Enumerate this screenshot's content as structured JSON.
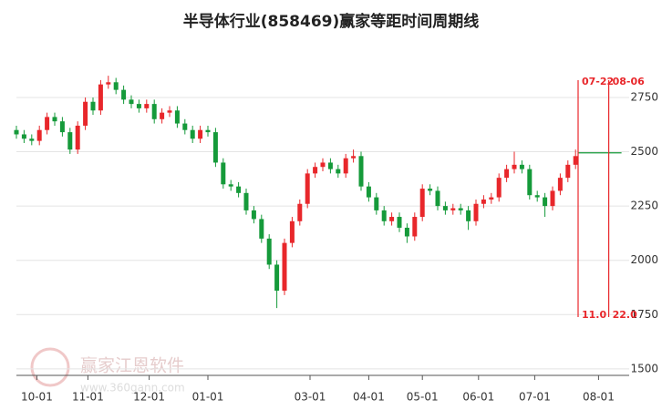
{
  "chart_data": {
    "type": "candlestick",
    "title": "半导体行业(858469)赢家等距时间周期线",
    "watermark": {
      "name": "赢家江恩软件",
      "url": "www.360gann.com"
    },
    "up_color": "#e8272b",
    "down_color": "#159a3a",
    "x": [
      0,
      3,
      6,
      9,
      12,
      15,
      18,
      21,
      24,
      27,
      30,
      33,
      36,
      39,
      42,
      45,
      48,
      51,
      54,
      57,
      60,
      63,
      66,
      69,
      72,
      75,
      78,
      81,
      84,
      87,
      90,
      93,
      96,
      99,
      102,
      105,
      108,
      111,
      114,
      117,
      120,
      123,
      126,
      129,
      132,
      135,
      138,
      141,
      144,
      147,
      150,
      153,
      156,
      159,
      162,
      165,
      168,
      171,
      174,
      177,
      180,
      183,
      186,
      189,
      192,
      195,
      198,
      201,
      204,
      207,
      210,
      213,
      216,
      219
    ],
    "open": [
      2600,
      2580,
      2560,
      2550,
      2600,
      2660,
      2640,
      2590,
      2510,
      2620,
      2730,
      2690,
      2810,
      2820,
      2785,
      2740,
      2720,
      2700,
      2720,
      2650,
      2680,
      2690,
      2630,
      2600,
      2560,
      2600,
      2590,
      2450,
      2350,
      2340,
      2310,
      2230,
      2190,
      2100,
      1980,
      1860,
      2080,
      2180,
      2260,
      2400,
      2430,
      2450,
      2420,
      2400,
      2470,
      2480,
      2340,
      2290,
      2230,
      2180,
      2200,
      2150,
      2110,
      2200,
      2330,
      2320,
      2250,
      2230,
      2240,
      2230,
      2180,
      2260,
      2280,
      2290,
      2380,
      2420,
      2440,
      2420,
      2300,
      2290,
      2250,
      2320,
      2380,
      2440
    ],
    "high": [
      2620,
      2600,
      2580,
      2620,
      2680,
      2680,
      2660,
      2610,
      2640,
      2750,
      2750,
      2830,
      2850,
      2840,
      2805,
      2760,
      2740,
      2740,
      2740,
      2700,
      2710,
      2710,
      2650,
      2620,
      2620,
      2620,
      2610,
      2470,
      2370,
      2360,
      2330,
      2250,
      2210,
      2120,
      2000,
      2100,
      2200,
      2280,
      2420,
      2450,
      2470,
      2470,
      2440,
      2490,
      2510,
      2500,
      2360,
      2310,
      2250,
      2220,
      2220,
      2170,
      2220,
      2350,
      2350,
      2340,
      2270,
      2260,
      2260,
      2250,
      2280,
      2300,
      2310,
      2400,
      2440,
      2500,
      2460,
      2440,
      2320,
      2310,
      2340,
      2400,
      2460,
      2510
    ],
    "low": [
      2560,
      2540,
      2530,
      2530,
      2580,
      2620,
      2570,
      2490,
      2490,
      2600,
      2670,
      2670,
      2790,
      2765,
      2720,
      2700,
      2680,
      2680,
      2630,
      2630,
      2660,
      2610,
      2580,
      2540,
      2540,
      2570,
      2430,
      2330,
      2320,
      2290,
      2210,
      2170,
      2080,
      1960,
      1780,
      1840,
      2060,
      2160,
      2240,
      2380,
      2410,
      2400,
      2380,
      2380,
      2450,
      2320,
      2270,
      2210,
      2160,
      2160,
      2130,
      2080,
      2090,
      2180,
      2300,
      2230,
      2210,
      2210,
      2210,
      2140,
      2160,
      2240,
      2260,
      2270,
      2360,
      2400,
      2400,
      2280,
      2270,
      2200,
      2230,
      2300,
      2360,
      2420
    ],
    "close": [
      2580,
      2560,
      2550,
      2600,
      2660,
      2640,
      2590,
      2510,
      2620,
      2730,
      2690,
      2810,
      2820,
      2785,
      2740,
      2720,
      2700,
      2720,
      2650,
      2680,
      2690,
      2630,
      2600,
      2560,
      2600,
      2590,
      2450,
      2350,
      2340,
      2310,
      2230,
      2190,
      2100,
      1980,
      1860,
      2080,
      2180,
      2260,
      2400,
      2430,
      2450,
      2420,
      2400,
      2470,
      2480,
      2340,
      2290,
      2230,
      2180,
      2200,
      2150,
      2110,
      2200,
      2330,
      2320,
      2250,
      2230,
      2240,
      2230,
      2180,
      2260,
      2280,
      2290,
      2380,
      2420,
      2440,
      2420,
      2300,
      2290,
      2250,
      2320,
      2380,
      2440,
      2480
    ],
    "xlim": [
      0,
      240
    ],
    "xticks": [
      {
        "value": 8,
        "label": "10-01"
      },
      {
        "value": 28,
        "label": "11-01"
      },
      {
        "value": 52,
        "label": "12-01"
      },
      {
        "value": 75,
        "label": "01-01"
      },
      {
        "value": 115,
        "label": "03-01"
      },
      {
        "value": 138,
        "label": "04-01"
      },
      {
        "value": 159,
        "label": "05-01"
      },
      {
        "value": 181,
        "label": "06-01"
      },
      {
        "value": 203,
        "label": "07-01"
      },
      {
        "value": 228,
        "label": "08-01"
      }
    ],
    "ylim": [
      1470,
      3010
    ],
    "yticks": [
      1500,
      1750,
      2000,
      2250,
      2500,
      2750
    ],
    "grid": true,
    "markers": [
      {
        "x": 220,
        "label": "07-22",
        "bottom_label": "11.0"
      },
      {
        "x": 232,
        "label": "08-06",
        "bottom_label": "22.0"
      }
    ],
    "marker_color": "#e8272b",
    "forecast": {
      "value": 2495,
      "x": [
        220,
        237
      ],
      "color": "#159a3a"
    }
  }
}
